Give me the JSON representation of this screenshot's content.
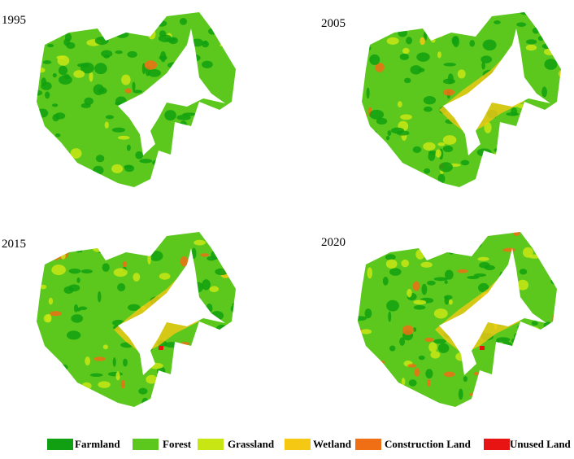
{
  "panels": [
    {
      "label": "1995"
    },
    {
      "label": "2005"
    },
    {
      "label": "2015"
    },
    {
      "label": "2020"
    }
  ],
  "legend": {
    "items": [
      {
        "label": "Farmland",
        "color": "#11a011"
      },
      {
        "label": "Forest",
        "color": "#5cc81e"
      },
      {
        "label": "Grassland",
        "color": "#c8e614"
      },
      {
        "label": "Wetland",
        "color": "#f5c814"
      },
      {
        "label": "Construction Land",
        "color": "#f06e14"
      },
      {
        "label": "Unused Land",
        "color": "#e81414"
      }
    ]
  }
}
